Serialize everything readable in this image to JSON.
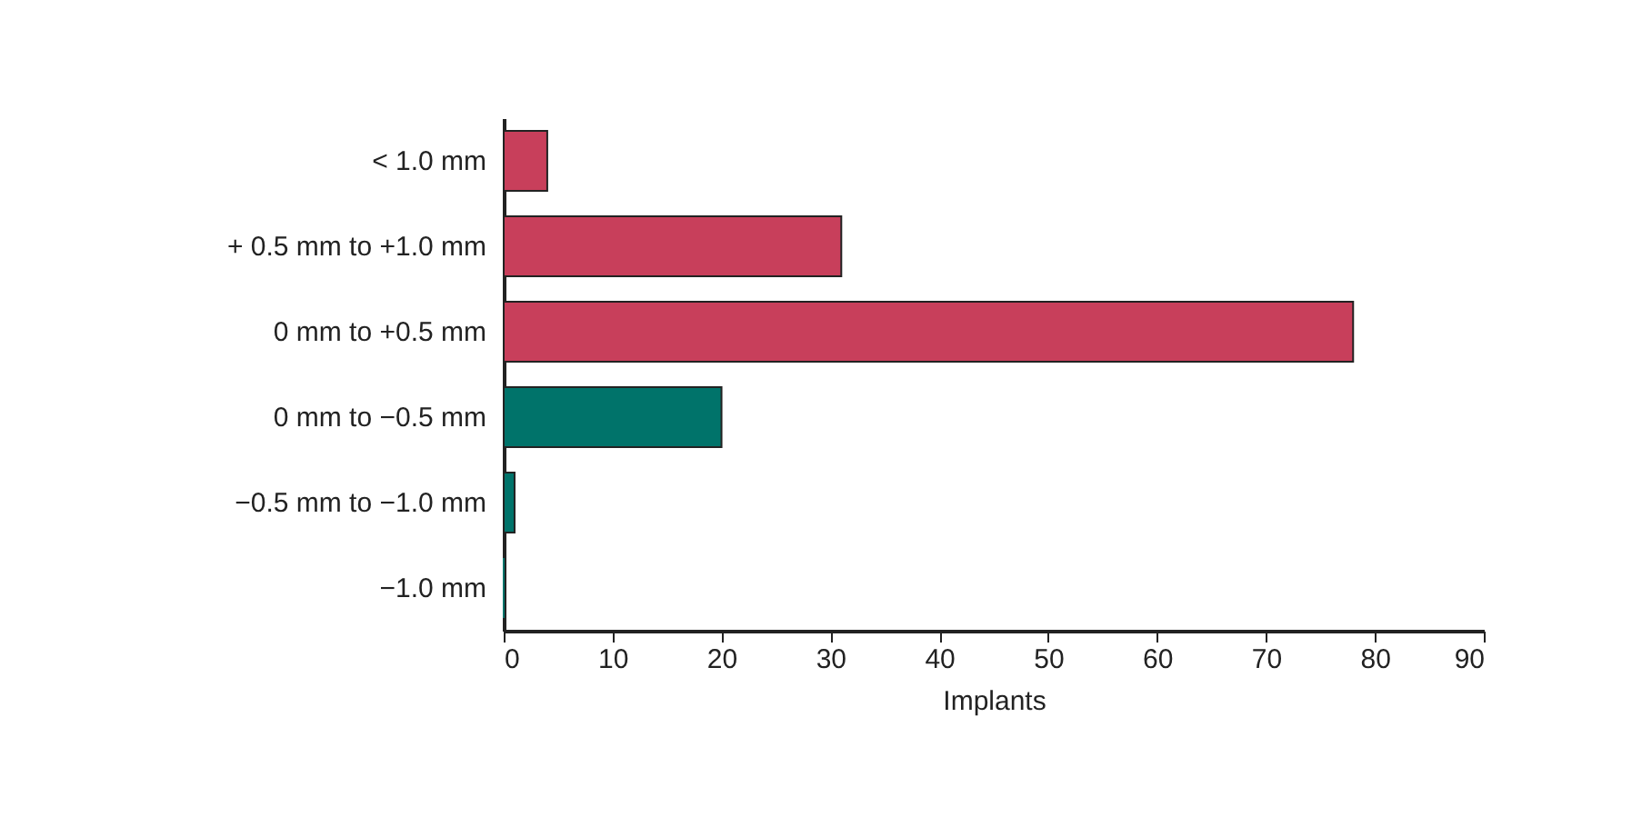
{
  "chart_data": {
    "type": "bar",
    "orientation": "horizontal",
    "xlabel": "Implants",
    "categories": [
      "< 1.0 mm",
      "+ 0.5 mm to +1.0 mm",
      "0 mm to +0.5 mm",
      "0 mm to −0.5 mm",
      "−0.5 mm to −1.0 mm",
      "−1.0 mm"
    ],
    "values": [
      4,
      31,
      78,
      20,
      1,
      0
    ],
    "colors": [
      "#c83f5b",
      "#c83f5b",
      "#c83f5b",
      "#00736a",
      "#00736a",
      "#00736a"
    ],
    "xlim": [
      0,
      90
    ],
    "xticks": [
      0,
      10,
      20,
      30,
      40,
      50,
      60,
      70,
      80,
      90
    ],
    "grid": false
  }
}
